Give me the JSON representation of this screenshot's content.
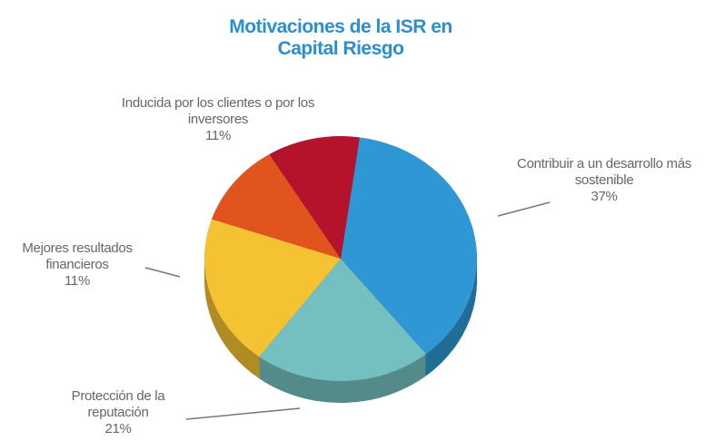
{
  "chart_data": {
    "type": "pie",
    "title": "Motivaciones de la ISR en Capital Riesgo",
    "categories": [
      "Contribuir a un desarrollo más sostenible",
      "Protección de la reputación",
      null,
      "Mejores resultados financieros",
      "Inducida por los clientes o por los inversores"
    ],
    "values": [
      37,
      21,
      20,
      11,
      11
    ],
    "value_labels": [
      "37%",
      "21%",
      null,
      "11%",
      "11%"
    ],
    "colors": [
      "#2f97d3",
      "#74bfbf",
      "#f4c232",
      "#e2541e",
      "#b5122b"
    ]
  }
}
